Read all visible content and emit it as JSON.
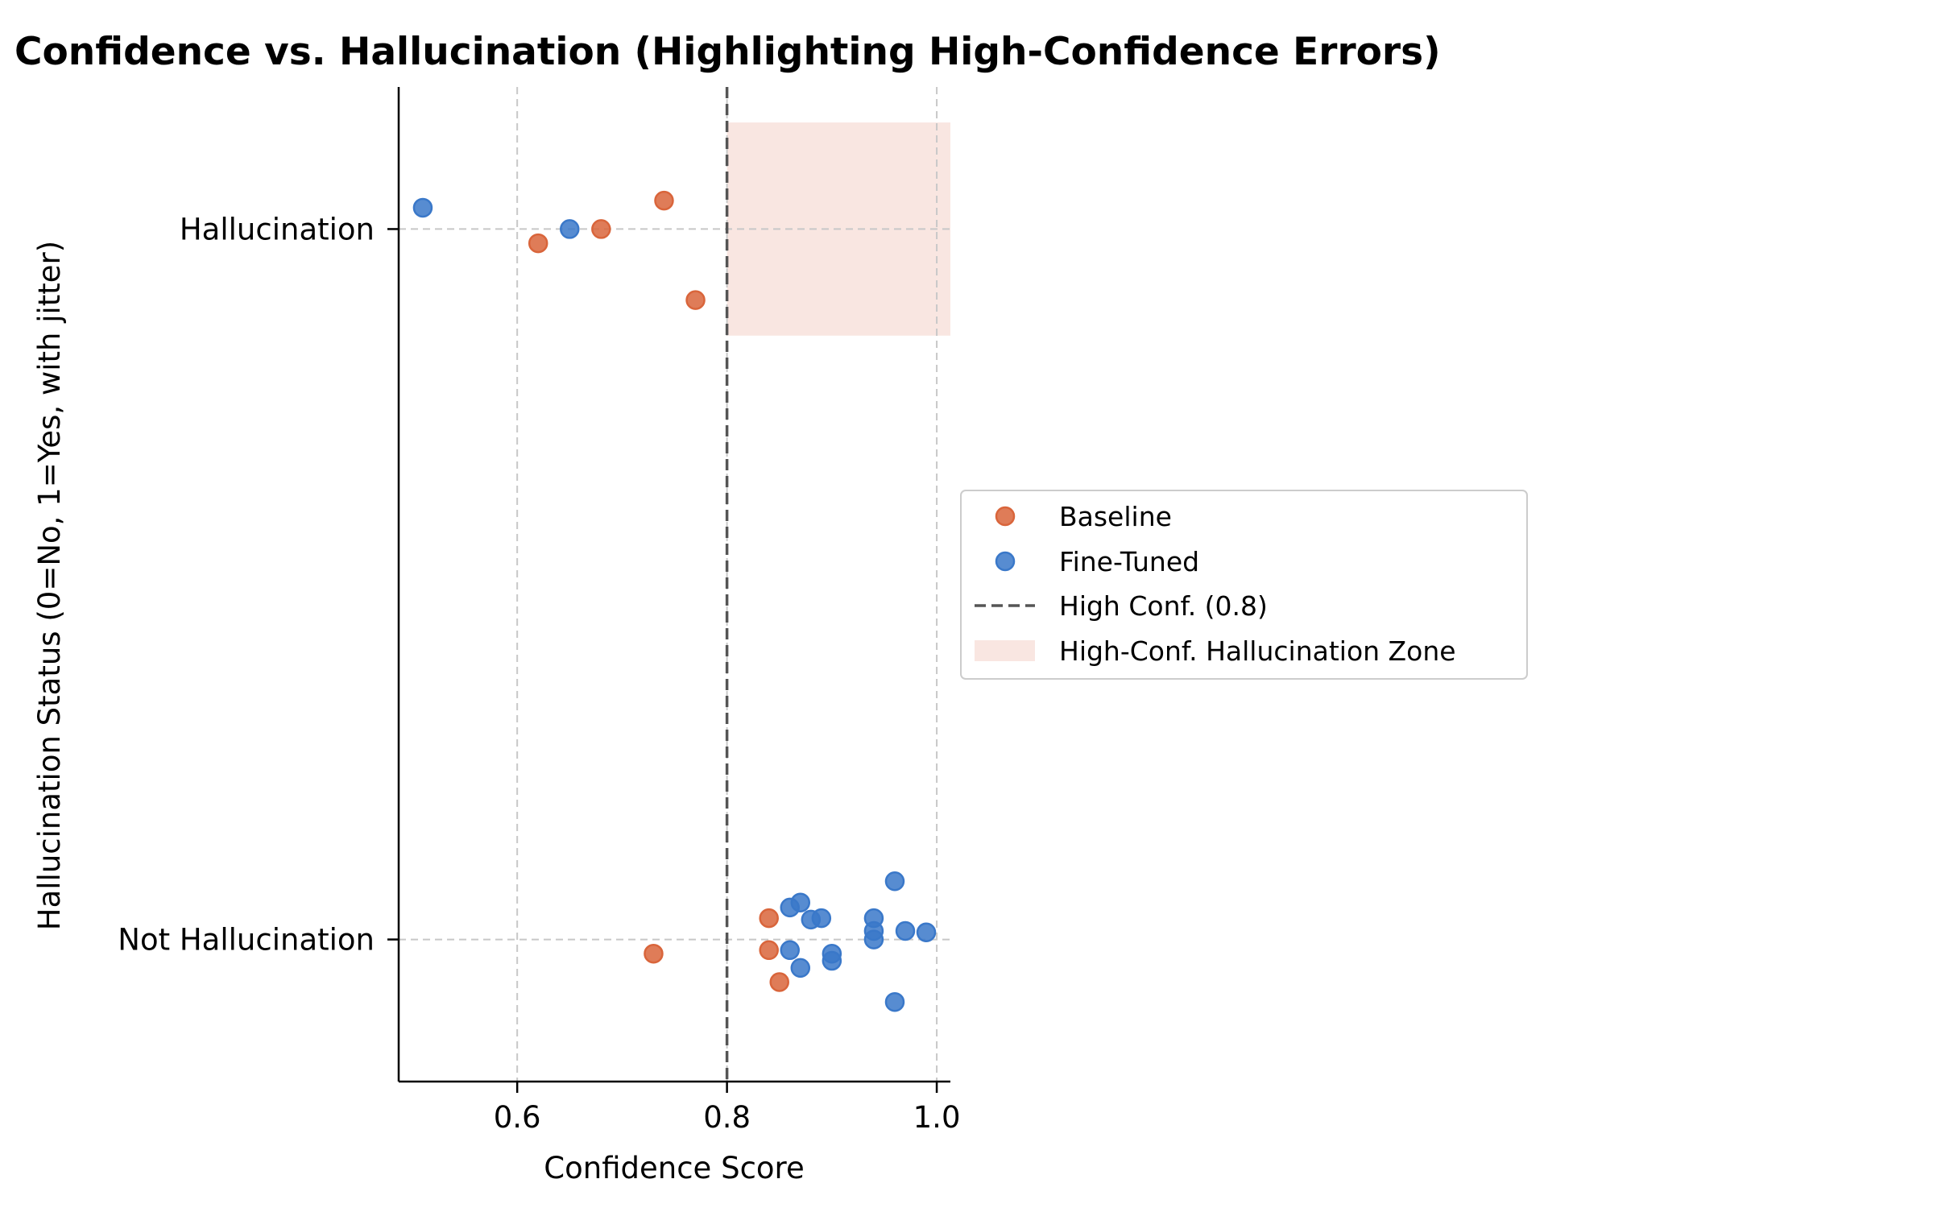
{
  "chart_data": {
    "type": "scatter",
    "title": "Confidence vs. Hallucination (Highlighting High-Confidence Errors)",
    "xlabel": "Confidence Score",
    "ylabel": "Hallucination Status (0=No, 1=Yes, with jitter)",
    "xlim": [
      0.487,
      1.013
    ],
    "ylim": [
      -0.2,
      1.2
    ],
    "xticks": [
      {
        "value": 0.6,
        "label": "0.6"
      },
      {
        "value": 0.8,
        "label": "0.8"
      },
      {
        "value": 1.0,
        "label": "1.0"
      }
    ],
    "yticks": [
      {
        "value": 0,
        "label": "Not Hallucination"
      },
      {
        "value": 1,
        "label": "Hallucination"
      }
    ],
    "grid": true,
    "legend_position": "outside-right-center",
    "threshold": {
      "name": "High Conf. (0.8)",
      "x": 0.8,
      "color": "#555555",
      "style": "dashed"
    },
    "zone": {
      "name": "High-Conf. Hallucination Zone",
      "x": [
        0.8,
        1.013
      ],
      "y": [
        0.85,
        1.15
      ],
      "color": "#f9e6e1"
    },
    "series": [
      {
        "name": "Baseline",
        "color": "#d9653b",
        "points": [
          {
            "x": 0.74,
            "y": 1.04
          },
          {
            "x": 0.62,
            "y": 0.98
          },
          {
            "x": 0.68,
            "y": 1.0
          },
          {
            "x": 0.77,
            "y": 0.9
          },
          {
            "x": 0.84,
            "y": 0.03
          },
          {
            "x": 0.84,
            "y": -0.015
          },
          {
            "x": 0.73,
            "y": -0.02
          },
          {
            "x": 0.85,
            "y": -0.06
          }
        ]
      },
      {
        "name": "Fine-Tuned",
        "color": "#3a78c9",
        "points": [
          {
            "x": 0.51,
            "y": 1.03
          },
          {
            "x": 0.65,
            "y": 1.0
          },
          {
            "x": 0.96,
            "y": 0.082
          },
          {
            "x": 0.87,
            "y": 0.052
          },
          {
            "x": 0.86,
            "y": 0.045
          },
          {
            "x": 0.89,
            "y": 0.03
          },
          {
            "x": 0.88,
            "y": 0.028
          },
          {
            "x": 0.94,
            "y": 0.03
          },
          {
            "x": 0.94,
            "y": 0.012
          },
          {
            "x": 0.97,
            "y": 0.012
          },
          {
            "x": 0.99,
            "y": 0.01
          },
          {
            "x": 0.94,
            "y": 0.0
          },
          {
            "x": 0.86,
            "y": -0.015
          },
          {
            "x": 0.9,
            "y": -0.02
          },
          {
            "x": 0.9,
            "y": -0.03
          },
          {
            "x": 0.87,
            "y": -0.04
          },
          {
            "x": 0.96,
            "y": -0.088
          }
        ]
      }
    ]
  }
}
